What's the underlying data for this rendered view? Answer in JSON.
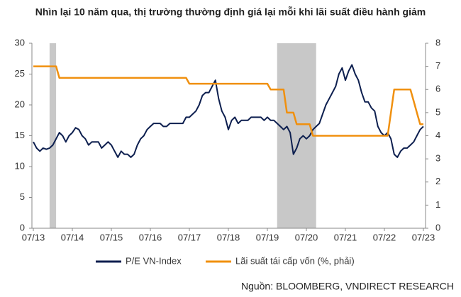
{
  "chart_data": {
    "type": "line",
    "title": "Nhìn lại 10 năm qua, thị trường thường định giá lại mỗi khi lãi suất điều hành giảm",
    "source": "Nguồn: BLOOMBERG, VNDIRECT RESEARCH",
    "x": [
      "07/13",
      "08/13",
      "09/13",
      "10/13",
      "11/13",
      "12/13",
      "01/14",
      "02/14",
      "03/14",
      "04/14",
      "05/14",
      "06/14",
      "07/14",
      "08/14",
      "09/14",
      "10/14",
      "11/14",
      "12/14",
      "01/15",
      "02/15",
      "03/15",
      "04/15",
      "05/15",
      "06/15",
      "07/15",
      "08/15",
      "09/15",
      "10/15",
      "11/15",
      "12/15",
      "01/16",
      "02/16",
      "03/16",
      "04/16",
      "05/16",
      "06/16",
      "07/16",
      "08/16",
      "09/16",
      "10/16",
      "11/16",
      "12/16",
      "01/17",
      "02/17",
      "03/17",
      "04/17",
      "05/17",
      "06/17",
      "07/17",
      "08/17",
      "09/17",
      "10/17",
      "11/17",
      "12/17",
      "01/18",
      "02/18",
      "03/18",
      "04/18",
      "05/18",
      "06/18",
      "07/18",
      "08/18",
      "09/18",
      "10/18",
      "11/18",
      "12/18",
      "01/19",
      "02/19",
      "03/19",
      "04/19",
      "05/19",
      "06/19",
      "07/19",
      "08/19",
      "09/19",
      "10/19",
      "11/19",
      "12/19",
      "01/20",
      "02/20",
      "03/20",
      "04/20",
      "05/20",
      "06/20",
      "07/20",
      "08/20",
      "09/20",
      "10/20",
      "11/20",
      "12/20",
      "01/21",
      "02/21",
      "03/21",
      "04/21",
      "05/21",
      "06/21",
      "07/21",
      "08/21",
      "09/21",
      "10/21",
      "11/21",
      "12/21",
      "01/22",
      "02/22",
      "03/22",
      "04/22",
      "05/22",
      "06/22",
      "07/22",
      "08/22",
      "09/22",
      "10/22",
      "11/22",
      "12/22",
      "01/23",
      "02/23",
      "03/23",
      "04/23",
      "05/23",
      "06/23",
      "07/23"
    ],
    "xticks": [
      "07/13",
      "07/14",
      "07/15",
      "07/16",
      "07/17",
      "07/18",
      "07/19",
      "07/20",
      "07/21",
      "07/22",
      "07/23"
    ],
    "shaded_ranges": [
      [
        "12/13",
        "02/14"
      ],
      [
        "10/19",
        "10/20"
      ]
    ],
    "series": [
      {
        "name": "P/E VN-Index",
        "color": "#0d1f4f",
        "axis": "y",
        "values": [
          14,
          13,
          12.5,
          13,
          12.8,
          13,
          13.5,
          14.5,
          15.5,
          15,
          14,
          15,
          15.5,
          16.3,
          16,
          15,
          14.5,
          13.5,
          14,
          14,
          14,
          13,
          13.5,
          14,
          13.5,
          12.5,
          11.5,
          12.5,
          12,
          12,
          11.5,
          12,
          13.5,
          14.5,
          15,
          16,
          16.5,
          17,
          17,
          17,
          16.5,
          16.5,
          17,
          17,
          17,
          17,
          17,
          18,
          18,
          18.5,
          19,
          20,
          21.5,
          22,
          22,
          23,
          24,
          21,
          19,
          18,
          16,
          17.5,
          18,
          17,
          17.5,
          17.5,
          17.5,
          18,
          18,
          18,
          18,
          17.5,
          18,
          17.5,
          17.5,
          17,
          16.5,
          16,
          16.5,
          15.5,
          12,
          13,
          14.5,
          15,
          14.5,
          15,
          16,
          16.5,
          17,
          18.5,
          20,
          21,
          22,
          23,
          25,
          26,
          24,
          25.5,
          26.5,
          25,
          24,
          22,
          20.5,
          20.5,
          19.5,
          19,
          16.5,
          15.5,
          15,
          15.5,
          14.5,
          12,
          11.5,
          12.5,
          13,
          13,
          13.5,
          14,
          15,
          16,
          16.5
        ]
      },
      {
        "name": "Lãi suất tái cấp vốn (%, phải)",
        "color": "#f0900f",
        "axis": "y2",
        "values": [
          7,
          7,
          7,
          7,
          7,
          7,
          7,
          7,
          6.5,
          6.5,
          6.5,
          6.5,
          6.5,
          6.5,
          6.5,
          6.5,
          6.5,
          6.5,
          6.5,
          6.5,
          6.5,
          6.5,
          6.5,
          6.5,
          6.5,
          6.5,
          6.5,
          6.5,
          6.5,
          6.5,
          6.5,
          6.5,
          6.5,
          6.5,
          6.5,
          6.5,
          6.5,
          6.5,
          6.5,
          6.5,
          6.5,
          6.5,
          6.5,
          6.5,
          6.5,
          6.5,
          6.5,
          6.5,
          6.25,
          6.25,
          6.25,
          6.25,
          6.25,
          6.25,
          6.25,
          6.25,
          6.25,
          6.25,
          6.25,
          6.25,
          6.25,
          6.25,
          6.25,
          6.25,
          6.25,
          6.25,
          6.25,
          6.25,
          6.25,
          6.25,
          6.25,
          6.25,
          6.25,
          6,
          6,
          6,
          6,
          6,
          5,
          5,
          5,
          4.5,
          4.5,
          4.5,
          4.5,
          4.5,
          4,
          4,
          4,
          4,
          4,
          4,
          4,
          4,
          4,
          4,
          4,
          4,
          4,
          4,
          4,
          4,
          4,
          4,
          4,
          4,
          4,
          4,
          4,
          4,
          5,
          6,
          6,
          6,
          6,
          6,
          6,
          5.5,
          5,
          4.5,
          4.5
        ]
      }
    ],
    "ylim": [
      0,
      30
    ],
    "yticks": [
      0,
      5,
      10,
      15,
      20,
      25,
      30
    ],
    "y2lim": [
      0,
      8
    ],
    "y2ticks": [
      0,
      1,
      2,
      3,
      4,
      5,
      6,
      7,
      8
    ],
    "shade_color": "#c8c8c8",
    "legend": "bottom"
  }
}
